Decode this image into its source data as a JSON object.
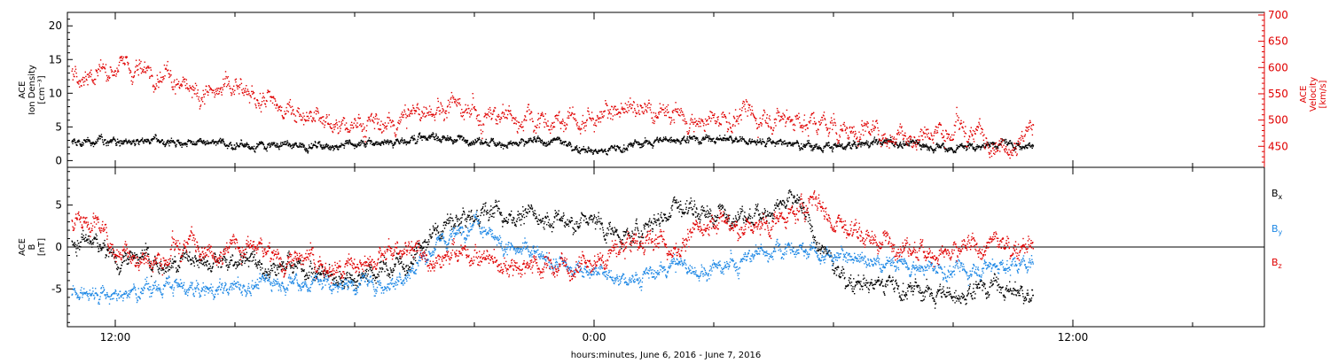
{
  "chart_data": [
    {
      "type": "scatter",
      "panel": "top",
      "title": "",
      "x_axis_label": "hours:minutes, June  6, 2016 - June  7, 2016",
      "x_unit": "hours since 00:00 June 6, 2016",
      "xlim": [
        10.8,
        40.8
      ],
      "x_tick_values": [
        12,
        24,
        36
      ],
      "x_tick_labels": [
        "12:00",
        "0:00",
        "12:00"
      ],
      "left_axis": {
        "label_lines": [
          "ACE",
          "Ion Density",
          "[cm⁻³]"
        ],
        "ylim": [
          -1,
          22
        ],
        "ticks": [
          0,
          5,
          10,
          15,
          20
        ],
        "color": "#000000"
      },
      "right_axis": {
        "label_lines": [
          "ACE",
          "Velocity",
          "[km/s]"
        ],
        "ylim": [
          410,
          705
        ],
        "ticks": [
          450,
          500,
          550,
          600,
          650,
          700
        ],
        "color": "#e00000"
      },
      "series": [
        {
          "axis": "left",
          "color": "#000000",
          "trend_x": [
            10.9,
            12.5,
            14,
            15.5,
            17,
            18.2,
            19,
            20,
            21,
            22,
            23,
            24.2,
            25,
            26,
            27,
            28,
            29,
            30,
            31,
            32,
            33,
            34,
            35
          ],
          "trend_y": [
            3.0,
            3.0,
            2.8,
            2.3,
            2.2,
            2.5,
            3.2,
            3.5,
            3.1,
            2.5,
            2.8,
            1.5,
            2.5,
            3.2,
            3.5,
            3.0,
            2.5,
            2.0,
            2.8,
            2.5,
            2.0,
            2.5,
            2.5
          ],
          "spread": 0.6
        },
        {
          "axis": "right",
          "color": "#e00000",
          "trend_x": [
            10.9,
            12,
            13,
            14,
            15,
            16,
            17,
            18,
            19,
            20,
            21,
            22,
            23,
            24,
            25,
            26,
            27,
            28,
            29,
            30,
            31,
            32,
            33,
            34,
            35
          ],
          "trend_y": [
            590,
            600,
            590,
            565,
            555,
            530,
            500,
            490,
            495,
            530,
            510,
            500,
            500,
            505,
            520,
            510,
            500,
            510,
            505,
            490,
            480,
            470,
            480,
            470,
            475
          ],
          "spread": 22
        }
      ]
    },
    {
      "type": "scatter",
      "panel": "bottom",
      "title": "",
      "xlim": [
        10.8,
        40.8
      ],
      "x_tick_values": [
        12,
        24,
        36
      ],
      "x_tick_labels": [
        "12:00",
        "0:00",
        "12:00"
      ],
      "left_axis": {
        "label_lines": [
          "ACE",
          "B",
          "[nT]"
        ],
        "ylim": [
          -9.5,
          9.5
        ],
        "ticks": [
          -5,
          0,
          5
        ],
        "zero_line": true
      },
      "legend": {
        "placement": "right",
        "entries": [
          {
            "base": "B",
            "sub": "x",
            "color": "#000000"
          },
          {
            "base": "B",
            "sub": "y",
            "color": "#1e88e5"
          },
          {
            "base": "B",
            "sub": "z",
            "color": "#e00000"
          }
        ]
      },
      "series": [
        {
          "name": "Bx",
          "color": "#000000",
          "trend_x": [
            10.9,
            11.5,
            12,
            13,
            14,
            15,
            16,
            17,
            18,
            19,
            19.5,
            20,
            21,
            22,
            23,
            24,
            24.7,
            25.5,
            26,
            27,
            28,
            29,
            30,
            31,
            32,
            33,
            34,
            35
          ],
          "trend_y": [
            1,
            0,
            -1,
            -2,
            -2,
            -1.5,
            -2,
            -3,
            -3.5,
            -2,
            -1,
            2,
            4,
            4,
            3,
            3,
            1,
            3,
            5,
            4,
            4,
            5.5,
            -3,
            -4,
            -5,
            -6,
            -4,
            -6
          ],
          "spread": 1.2
        },
        {
          "name": "By",
          "color": "#1e88e5",
          "trend_x": [
            10.9,
            11.5,
            12,
            13,
            14,
            15,
            16,
            17,
            18,
            19,
            20,
            21,
            22,
            23,
            24,
            25,
            26,
            27,
            28,
            29,
            30,
            31,
            32,
            33,
            34,
            35
          ],
          "trend_y": [
            -5,
            -5.5,
            -6,
            -4.5,
            -5,
            -5,
            -4,
            -4,
            -4.5,
            -4,
            0,
            3,
            0,
            -2,
            -3,
            -4,
            -2,
            -3,
            -1,
            0,
            -1,
            -2,
            -2,
            -3,
            -2,
            -2
          ],
          "spread": 1.0
        },
        {
          "name": "Bz",
          "color": "#e00000",
          "trend_x": [
            10.9,
            11.5,
            12,
            13,
            14,
            15,
            16,
            17,
            18,
            19,
            20,
            21,
            22,
            23,
            24,
            25,
            26,
            27,
            28,
            29,
            29.5,
            30,
            31,
            32,
            33,
            34,
            35
          ],
          "trend_y": [
            4,
            3,
            0,
            -2,
            1,
            0,
            -1,
            -2,
            -3,
            0,
            -1,
            -1,
            -2,
            -2,
            -2,
            1,
            0,
            3,
            2,
            4,
            6,
            3,
            1,
            0,
            -1,
            0,
            1
          ],
          "spread": 1.3
        }
      ]
    }
  ]
}
